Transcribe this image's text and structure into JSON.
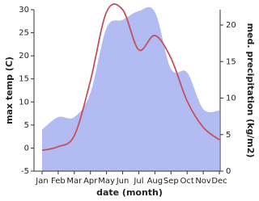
{
  "chart_data": {
    "type": "line_area",
    "categories": [
      "Jan",
      "Feb",
      "Mar",
      "Apr",
      "May",
      "Jun",
      "Jul",
      "Aug",
      "Sep",
      "Oct",
      "Nov",
      "Dec"
    ],
    "x_label": "date (month)",
    "y_label": "max temp (C)",
    "y2_label": "med. precipitation (kg/m2)",
    "series": [
      {
        "name": "max temp",
        "type": "line",
        "color": "#c4505e",
        "values": [
          -0.5,
          0.3,
          2.7,
          14.6,
          29.5,
          30,
          21.3,
          24.4,
          19.5,
          10.2,
          4.5,
          1.8
        ]
      },
      {
        "name": "med. precipitation",
        "type": "area",
        "axis": "y2",
        "color": "#b3bcf2",
        "values": [
          5.7,
          7.4,
          7.4,
          10.7,
          19.6,
          20.7,
          21.9,
          21.8,
          14,
          13.5,
          8.5,
          8.3
        ]
      }
    ],
    "ylim": [
      -5,
      30
    ],
    "yticks": [
      -5,
      0,
      5,
      10,
      15,
      20,
      25,
      30
    ],
    "y2lim": [
      0,
      22.1
    ],
    "y2ticks": [
      0,
      5,
      10,
      15,
      20
    ]
  }
}
